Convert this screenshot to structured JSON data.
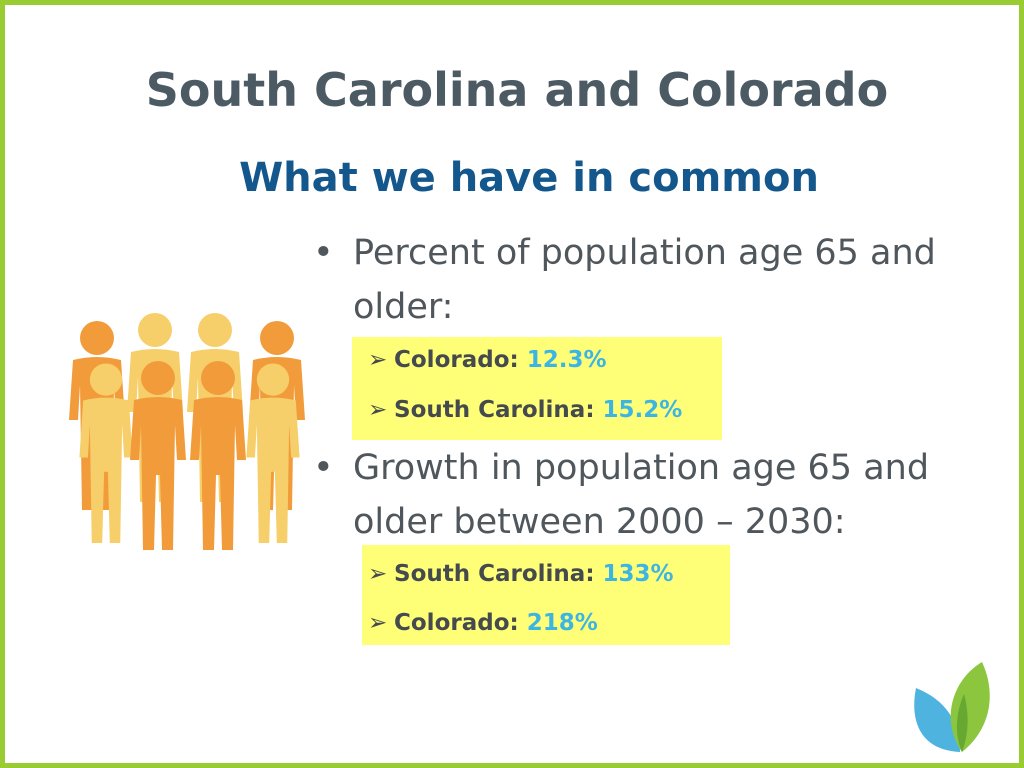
{
  "slide": {
    "title": "South Carolina and Colorado",
    "subtitle": "What we have in common",
    "bullets": [
      {
        "marker": "•",
        "text": "Percent of population age 65 and older:",
        "items": [
          {
            "arrow": "➢",
            "label": "Colorado:",
            "value": "12.3%"
          },
          {
            "arrow": "➢",
            "label": "South Carolina:",
            "value": "15.2%"
          }
        ]
      },
      {
        "marker": "•",
        "text": "Growth in population age 65 and older between 2000 – 2030:",
        "items": [
          {
            "arrow": "➢",
            "label": "South Carolina:",
            "value": "133%"
          },
          {
            "arrow": "➢",
            "label": "Colorado:",
            "value": "218%"
          }
        ]
      }
    ]
  },
  "colors": {
    "border": "#99cc33",
    "title": "#4c5a64",
    "subtitle": "#13578c",
    "highlight": "#ffff77",
    "value": "#3cb5e4",
    "person_orange": "#f29b3a",
    "person_yellow": "#f6cf6a",
    "leaf_blue": "#4fb3e0",
    "leaf_green": "#8cc63f"
  },
  "icons": [
    "people-group-icon",
    "leaf-logo-icon"
  ]
}
